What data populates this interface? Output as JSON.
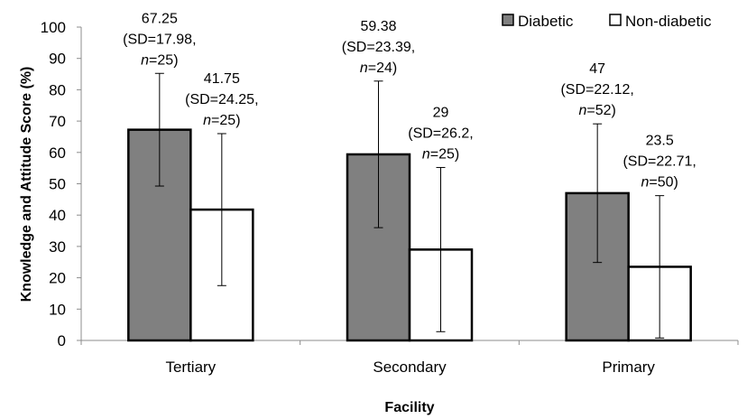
{
  "chart_data": {
    "type": "bar",
    "title": "",
    "xlabel": "Facility",
    "ylabel": "Knowledge and Attitude Score (%)",
    "ylim": [
      0,
      100
    ],
    "yticks": [
      0,
      10,
      20,
      30,
      40,
      50,
      60,
      70,
      80,
      90,
      100
    ],
    "grid": false,
    "legend_position": "top-right",
    "categories": [
      "Tertiary",
      "Secondary",
      "Primary"
    ],
    "series": [
      {
        "name": "Diabetic",
        "color": "#808080",
        "values": [
          67.25,
          59.38,
          47
        ],
        "sd": [
          17.98,
          23.39,
          22.12
        ],
        "n": [
          25,
          24,
          52
        ],
        "labels": [
          {
            "value": "67.25",
            "sd": "(SD=17.98,",
            "n_prefix": "n",
            "n_suffix": "=25)"
          },
          {
            "value": "59.38",
            "sd": "(SD=23.39,",
            "n_prefix": "n",
            "n_suffix": "=24)"
          },
          {
            "value": "47",
            "sd": "(SD=22.12,",
            "n_prefix": "n",
            "n_suffix": "=52)"
          }
        ]
      },
      {
        "name": "Non-diabetic",
        "color": "#ffffff",
        "values": [
          41.75,
          29,
          23.5
        ],
        "sd": [
          24.25,
          26.2,
          22.71
        ],
        "n": [
          25,
          25,
          50
        ],
        "labels": [
          {
            "value": "41.75",
            "sd": "(SD=24.25,",
            "n_prefix": "n",
            "n_suffix": "=25)"
          },
          {
            "value": "29",
            "sd": "(SD=26.2,",
            "n_prefix": "n",
            "n_suffix": "=25)"
          },
          {
            "value": "23.5",
            "sd": "(SD=22.71,",
            "n_prefix": "n",
            "n_suffix": "=50)"
          }
        ]
      }
    ]
  }
}
